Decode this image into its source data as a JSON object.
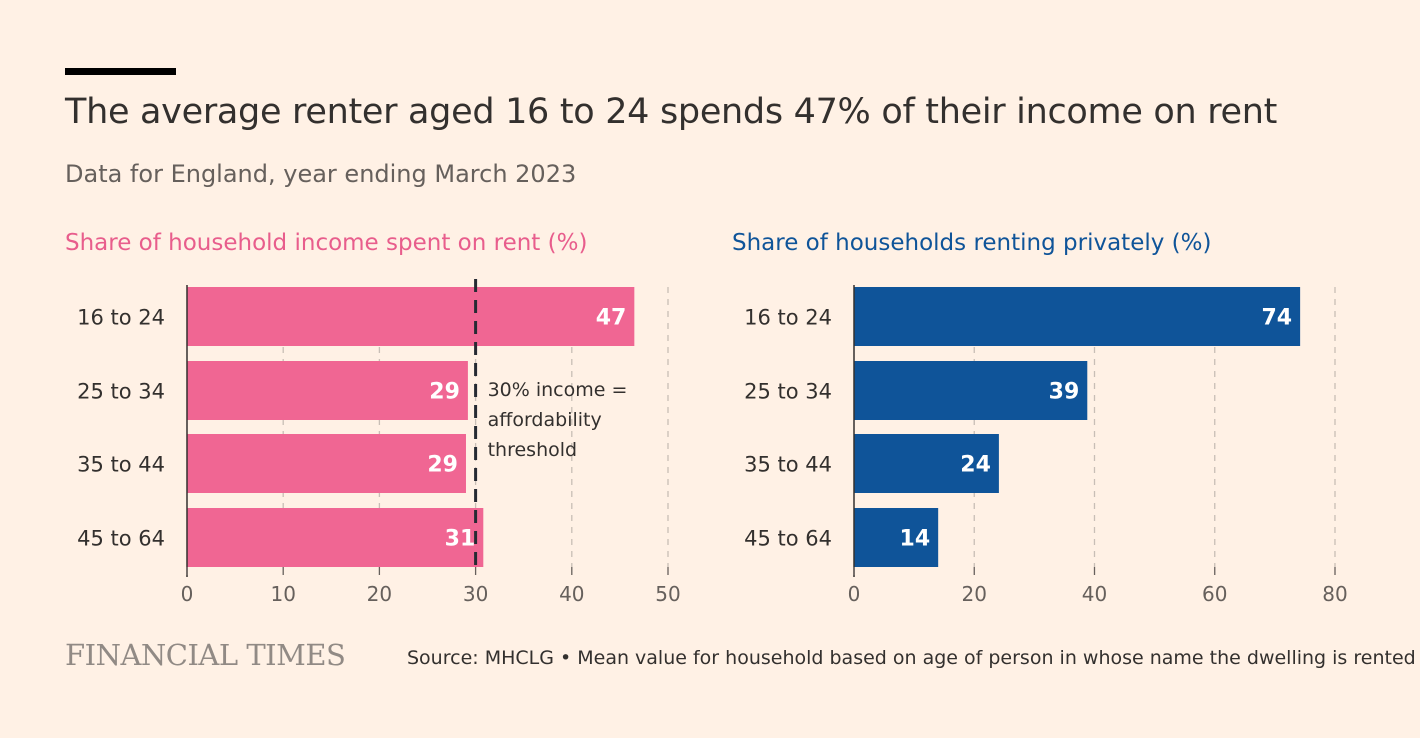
{
  "header": {
    "title": "The average renter aged 16 to 24 spends 47% of their income on rent",
    "subtitle": "Data for England, year ending March 2023"
  },
  "footer": {
    "logo": "FINANCIAL TIMES",
    "source": "Source: MHCLG • Mean value for household based on age of person in whose name the dwelling is rented"
  },
  "colors": {
    "background": "#FFF1E5",
    "left_bar": "#F06693",
    "left_title": "#E85D8C",
    "right_bar": "#0F5499",
    "right_title": "#0F5499"
  },
  "chart_data": [
    {
      "type": "bar",
      "orientation": "horizontal",
      "title": "Share of household income spent on rent (%)",
      "categories": [
        "16 to 24",
        "25 to 34",
        "35 to 44",
        "45 to 64"
      ],
      "values": [
        46.5,
        29.2,
        29.0,
        30.8
      ],
      "value_labels": [
        "47",
        "29",
        "29",
        "31"
      ],
      "xlim": [
        0,
        50
      ],
      "xticks": [
        0,
        10,
        20,
        30,
        40,
        50
      ],
      "grid": "vertical dashed",
      "reference_line": {
        "value": 30,
        "style": "dashed",
        "label": [
          "30% income =",
          "affordability",
          "threshold"
        ]
      }
    },
    {
      "type": "bar",
      "orientation": "horizontal",
      "title": "Share of households renting privately (%)",
      "categories": [
        "16 to 24",
        "25 to 34",
        "35 to 44",
        "45 to 64"
      ],
      "values": [
        74.2,
        38.8,
        24.1,
        14.0
      ],
      "value_labels": [
        "74",
        "39",
        "24",
        "14"
      ],
      "xlim": [
        0,
        80
      ],
      "xticks": [
        0,
        20,
        40,
        60,
        80
      ],
      "grid": "vertical dashed"
    }
  ]
}
